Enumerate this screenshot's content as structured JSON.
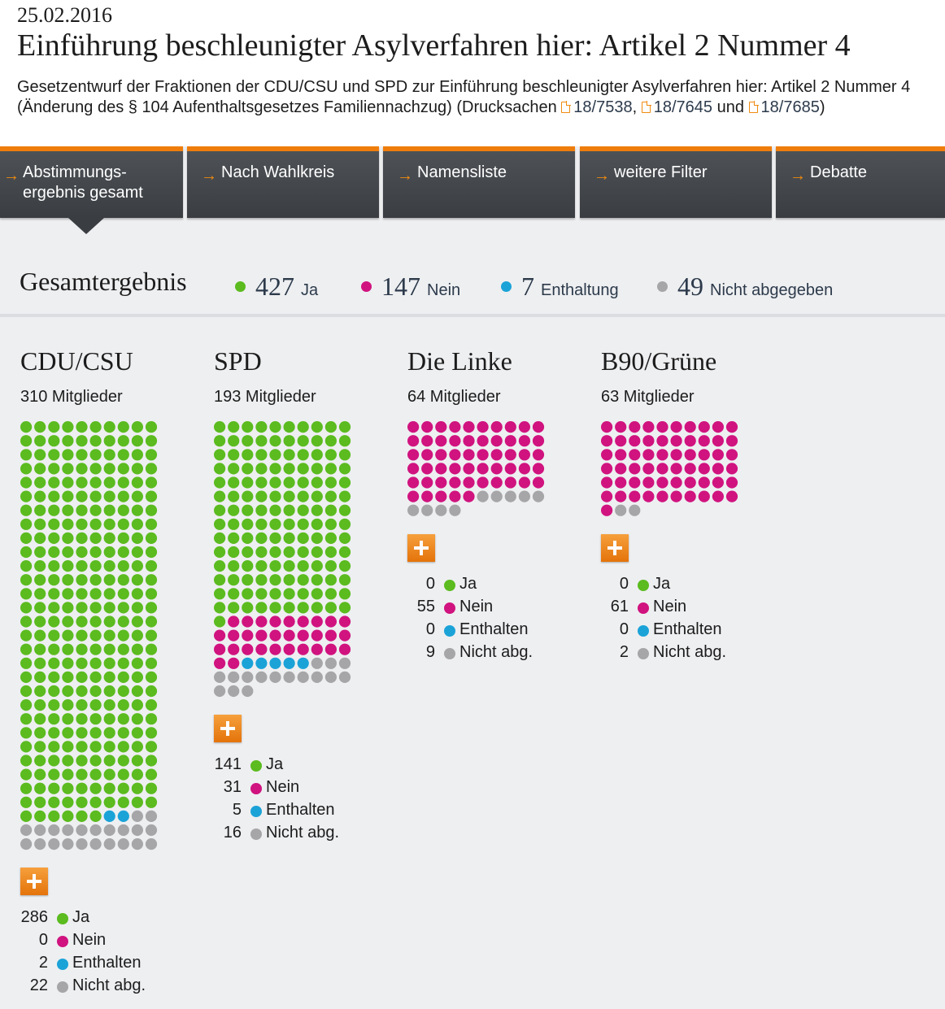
{
  "date": "25.02.2016",
  "title": "Einführung beschleunigter Asylverfahren hier: Artikel 2 Nummer 4",
  "description": {
    "text_line1": "Gesetzentwurf der Fraktionen der CDU/CSU und SPD zur Einführung beschleunigter Asylverfahren hier: Artikel 2 Nummer",
    "text_line2": "4 (Änderung des § 104 Aufenthaltsgesetzes Familiennachzug) (Drucksachen",
    "doc1": "18/7538",
    "sep1": ",",
    "doc2": "18/7645",
    "sep2": "und",
    "doc3": "18/7685",
    "close": ")"
  },
  "tabs": [
    {
      "label": "Abstimmungs-\nergebnis gesamt",
      "active": true
    },
    {
      "label": "Nach Wahlkreis"
    },
    {
      "label": "Namensliste"
    },
    {
      "label": "weitere Filter"
    },
    {
      "label": "Debatte"
    }
  ],
  "summary": {
    "title": "Gesamtergebnis",
    "ja": {
      "value": "427",
      "label": "Ja"
    },
    "nein": {
      "value": "147",
      "label": "Nein"
    },
    "enthaltung": {
      "value": "7",
      "label": "Enthaltung"
    },
    "nicht": {
      "value": "49",
      "label": "Nicht abgegeben"
    }
  },
  "colors": {
    "ja": "#5bbb1f",
    "nein": "#d0137f",
    "enthalten": "#1ba3d8",
    "nicht": "#a6a6a9",
    "accent": "#ee7d0c"
  },
  "legend_labels": {
    "ja": "Ja",
    "nein": "Nein",
    "enthalten": "Enthalten",
    "nicht": "Nicht abg."
  },
  "parties": [
    {
      "name": "CDU/CSU",
      "members": "310 Mitglieder",
      "ja": 286,
      "nein": 0,
      "enthalten": 2,
      "nicht": 22
    },
    {
      "name": "SPD",
      "members": "193 Mitglieder",
      "ja": 141,
      "nein": 31,
      "enthalten": 5,
      "nicht": 16
    },
    {
      "name": "Die Linke",
      "members": "64 Mitglieder",
      "ja": 0,
      "nein": 55,
      "enthalten": 0,
      "nicht": 9
    },
    {
      "name": "B90/Grüne",
      "members": "63 Mitglieder",
      "ja": 0,
      "nein": 61,
      "enthalten": 0,
      "nicht": 2
    }
  ]
}
